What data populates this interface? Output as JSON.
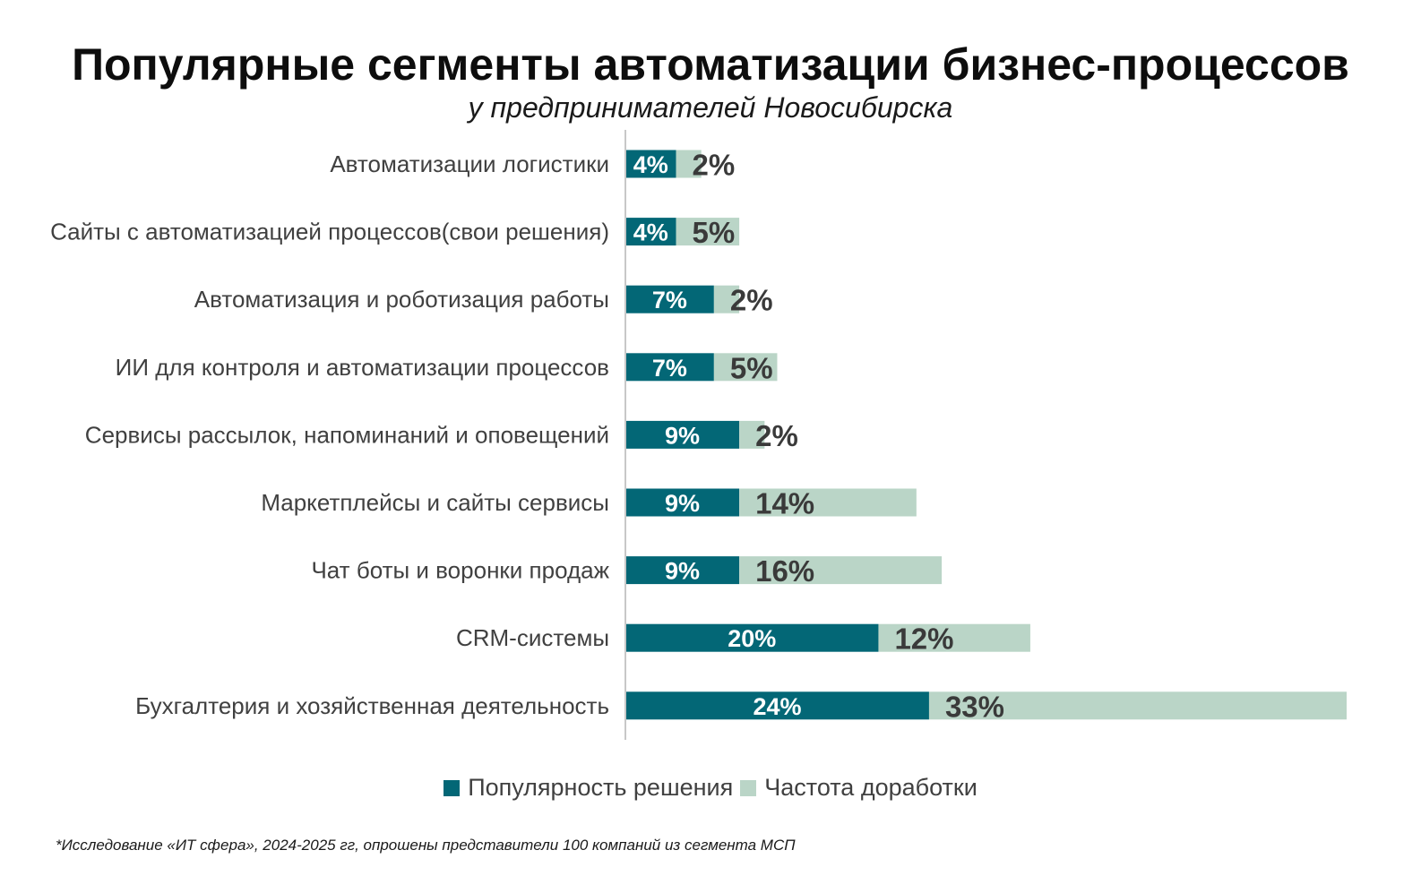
{
  "colors": {
    "series_primary": "#036776",
    "series_secondary": "#bad5c7",
    "axis_line": "#c8c8c8",
    "category_text": "#404040",
    "label_on_primary": "#ffffff",
    "label_on_secondary": "#3a3a3a"
  },
  "chart_data": {
    "type": "bar",
    "orientation": "horizontal",
    "stacked": true,
    "title": "Популярные сегменты автоматизации бизнес-процессов",
    "subtitle": "у предпринимателей Новосибирска",
    "categories": [
      "Автоматизации логистики",
      "Сайты с автоматизацией процессов(свои решения)",
      "Автоматизация и роботизация работы",
      "ИИ для контроля и автоматизации процессов",
      "Сервисы рассылок, напоминаний и оповещений",
      "Маркетплейсы и сайты сервисы",
      "Чат боты и воронки продаж",
      "CRM-системы",
      "Бухгалтерия и хозяйственная деятельность"
    ],
    "series": [
      {
        "name": "Популярность решения",
        "values": [
          4,
          4,
          7,
          7,
          9,
          9,
          9,
          20,
          24
        ],
        "labels": [
          "4%",
          "4%",
          "7%",
          "7%",
          "9%",
          "9%",
          "9%",
          "20%",
          "24%"
        ],
        "color": "#036776"
      },
      {
        "name": "Частота доработки",
        "values": [
          2,
          5,
          2,
          5,
          2,
          14,
          16,
          12,
          33
        ],
        "labels": [
          "2%",
          "5%",
          "2%",
          "5%",
          "2%",
          "14%",
          "16%",
          "12%",
          "33%"
        ],
        "color": "#bad5c7"
      }
    ],
    "xlabel": "",
    "ylabel": "",
    "xlim": [
      0,
      57
    ],
    "grid": false,
    "legend_position": "bottom"
  },
  "footnote": "*Исследование «ИТ сфера», 2024-2025 гг, опрошены представители 100 компаний из сегмента МСП"
}
